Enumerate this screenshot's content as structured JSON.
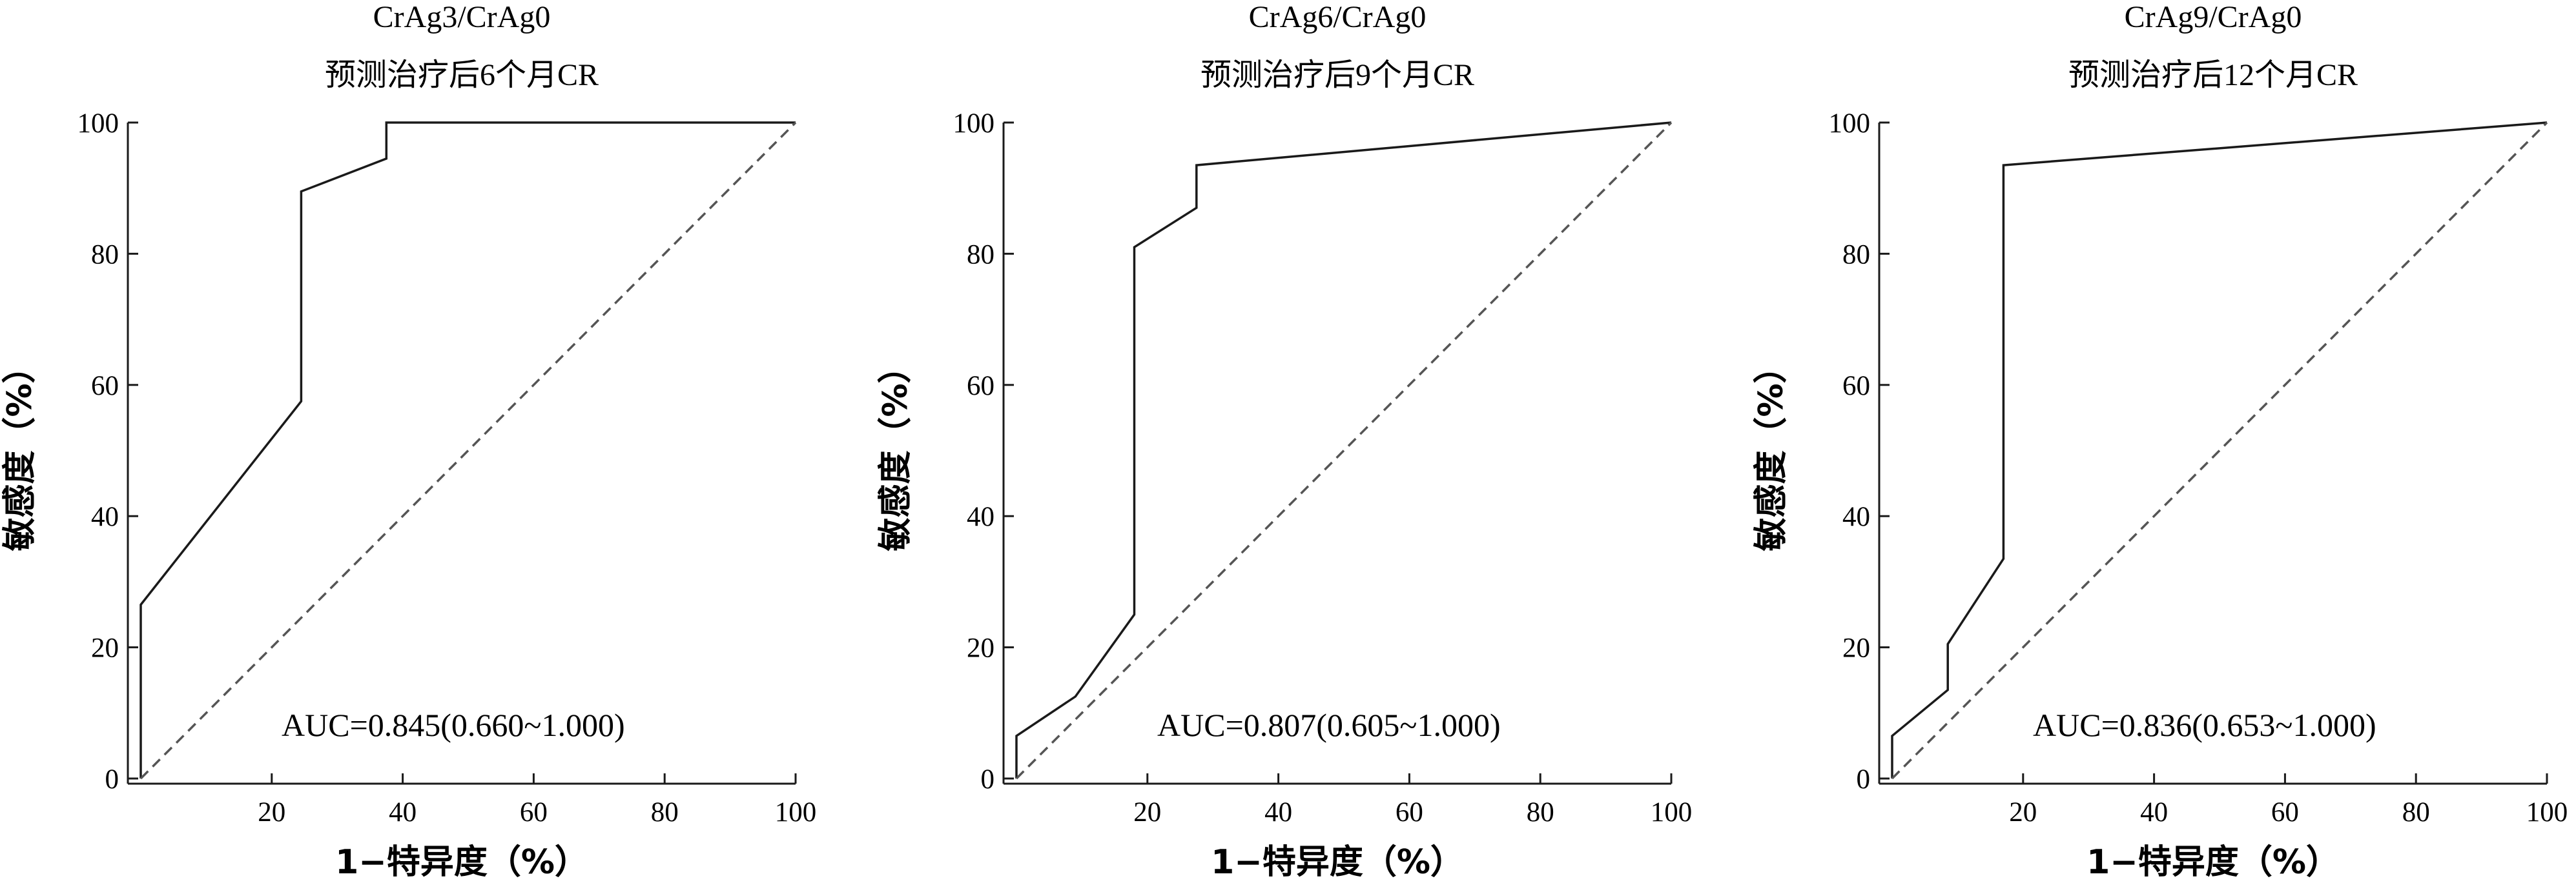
{
  "chart_data": [
    {
      "type": "line",
      "title": "CrAg3/CrAg0",
      "subtitle": "预测治疗后6个月CR",
      "xlabel": "1−特异度（%）",
      "ylabel": "敏感度（%）",
      "xlim": [
        0,
        100
      ],
      "ylim": [
        0,
        100
      ],
      "xticks": [
        "20",
        "40",
        "60",
        "80",
        "100"
      ],
      "yticks": [
        "0",
        "20",
        "40",
        "60",
        "80",
        "100"
      ],
      "grid": false,
      "annotation": "AUC=0.845(0.660~1.000)",
      "series": [
        {
          "style": "solid",
          "color": "#1a1a1a",
          "x": [
            0,
            0,
            0,
            24.5,
            24.5,
            37.5,
            37.5,
            100
          ],
          "y": [
            0,
            0,
            26.5,
            57.5,
            89.5,
            94.5,
            100,
            100
          ]
        },
        {
          "style": "dashed",
          "color": "#555555",
          "x": [
            0,
            100
          ],
          "y": [
            0,
            100
          ]
        }
      ]
    },
    {
      "type": "line",
      "title": "CrAg6/CrAg0",
      "subtitle": "预测治疗后9个月CR",
      "xlabel": "1−特异度（%）",
      "ylabel": "敏感度（%）",
      "xlim": [
        0,
        100
      ],
      "ylim": [
        0,
        100
      ],
      "xticks": [
        "20",
        "40",
        "60",
        "80",
        "100"
      ],
      "yticks": [
        "0",
        "20",
        "40",
        "60",
        "80",
        "100"
      ],
      "grid": false,
      "annotation": "AUC=0.807(0.605~1.000)",
      "series": [
        {
          "style": "solid",
          "color": "#1a1a1a",
          "x": [
            0,
            0,
            9,
            18,
            18,
            27.5,
            27.5,
            100
          ],
          "y": [
            0,
            6.5,
            12.5,
            25,
            81,
            87,
            93.5,
            100
          ]
        },
        {
          "style": "dashed",
          "color": "#555555",
          "x": [
            0,
            100
          ],
          "y": [
            0,
            100
          ]
        }
      ]
    },
    {
      "type": "line",
      "title": "CrAg9/CrAg0",
      "subtitle": "预测治疗后12个月CR",
      "xlabel": "1−特异度（%）",
      "ylabel": "敏感度（%）",
      "xlim": [
        0,
        100
      ],
      "ylim": [
        0,
        100
      ],
      "xticks": [
        "20",
        "40",
        "60",
        "80",
        "100"
      ],
      "yticks": [
        "0",
        "20",
        "40",
        "60",
        "80",
        "100"
      ],
      "grid": false,
      "annotation": "AUC=0.836(0.653~1.000)",
      "series": [
        {
          "style": "solid",
          "color": "#1a1a1a",
          "x": [
            0,
            0,
            8.5,
            8.5,
            17,
            17,
            100
          ],
          "y": [
            0,
            6.5,
            13.5,
            20.5,
            33.5,
            93.5,
            100
          ]
        },
        {
          "style": "dashed",
          "color": "#555555",
          "x": [
            0,
            100
          ],
          "y": [
            0,
            100
          ]
        }
      ]
    }
  ]
}
